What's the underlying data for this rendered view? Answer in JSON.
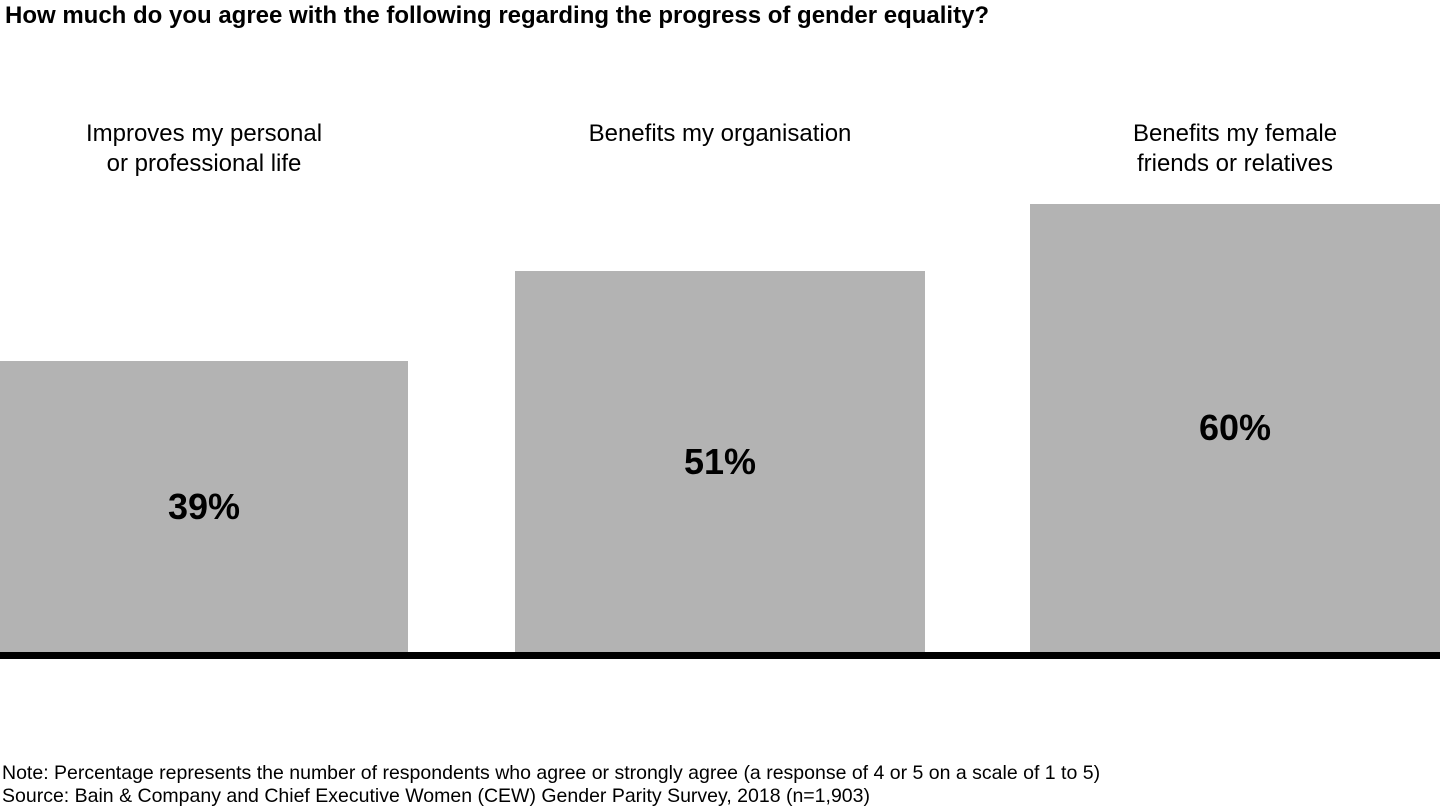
{
  "chart_data": {
    "type": "bar",
    "title": "How much do you agree with the following regarding the progress of gender equality?",
    "categories": [
      "Improves my personal\nor professional life",
      "Benefits my organisation",
      "Benefits my female\nfriends or relatives"
    ],
    "values": [
      39,
      51,
      60
    ],
    "value_labels": [
      "39%",
      "51%",
      "60%"
    ],
    "unit": "%",
    "ylim": [
      0,
      87
    ],
    "grid": false,
    "legend": false,
    "axes_visible": false,
    "bar_color": "#b3b3b3",
    "value_label_color": "#000000",
    "baseline_color": "#000000",
    "note": "Note: Percentage represents the number of respondents who agree or strongly agree (a response of 4 or 5 on a scale of 1 to 5)",
    "source": "Source: Bain & Company and Chief Executive Women (CEW) Gender Parity Survey, 2018 (n=1,903)"
  }
}
